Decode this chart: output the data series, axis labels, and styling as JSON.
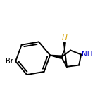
{
  "background_color": "#ffffff",
  "bond_color": "#000000",
  "bond_width": 1.4,
  "br_label": "Br",
  "br_color": "#000000",
  "h_label": "H",
  "h_color": "#d4a000",
  "nh_label": "NH",
  "nh_color": "#0000cc",
  "figsize": [
    1.52,
    1.52
  ],
  "dpi": 100,
  "xlim": [
    0.0,
    1.0
  ],
  "ylim": [
    0.1,
    0.9
  ]
}
